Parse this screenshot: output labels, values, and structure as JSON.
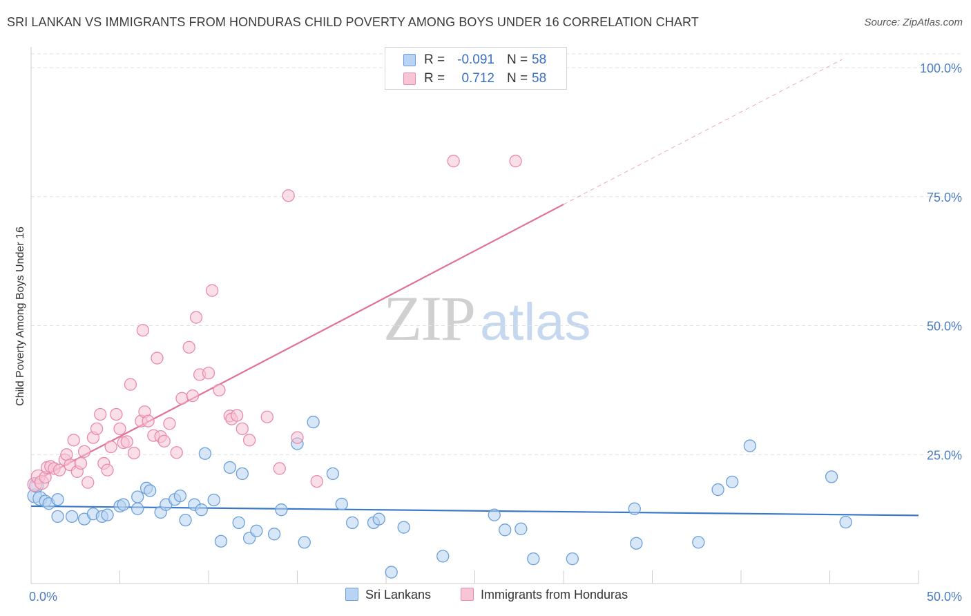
{
  "header": {
    "title": "SRI LANKAN VS IMMIGRANTS FROM HONDURAS CHILD POVERTY AMONG BOYS UNDER 16 CORRELATION CHART",
    "source": "Source: ZipAtlas.com"
  },
  "watermark": {
    "zip": "ZIP",
    "atlas": "atlas"
  },
  "legend": {
    "rows": [
      {
        "r_label": "R =",
        "r_value": "-0.091",
        "n_label": "N =",
        "n_value": "58"
      },
      {
        "r_label": "R =",
        "r_value": "0.712",
        "n_label": "N =",
        "n_value": "58"
      }
    ]
  },
  "bottom_legend": {
    "items": [
      "Sri Lankans",
      "Immigrants from Honduras"
    ]
  },
  "colors": {
    "blue_fill": "#b8d3f3",
    "blue_stroke": "#6a9fd8",
    "blue_line": "#3a78cc",
    "pink_fill": "#f7c5d6",
    "pink_stroke": "#e88aaa",
    "pink_line": "#e0709a",
    "grid": "#e2e2e2",
    "tick_text": "#4a7cc4"
  },
  "chart_data": {
    "type": "scatter",
    "title": "SRI LANKAN VS IMMIGRANTS FROM HONDURAS CHILD POVERTY AMONG BOYS UNDER 16 CORRELATION CHART",
    "xlabel": "",
    "ylabel": "Child Poverty Among Boys Under 16",
    "xlim": [
      0,
      50
    ],
    "ylim": [
      0,
      100
    ],
    "x_tick_labels": [
      "0.0%",
      "50.0%"
    ],
    "y_ticks": [
      25,
      50,
      75,
      100
    ],
    "y_tick_labels": [
      "25.0%",
      "50.0%",
      "75.0%",
      "100.0%"
    ],
    "grid": true,
    "legend_position": "top-center",
    "series": [
      {
        "name": "Sri Lankans",
        "color": "#6a9fd8",
        "trend": {
          "x": [
            0,
            50
          ],
          "y": [
            15.0,
            13.2
          ],
          "dashed_from": null
        },
        "points": [
          {
            "x": 0.2,
            "y": 17.0
          },
          {
            "x": 0.3,
            "y": 19.0
          },
          {
            "x": 0.5,
            "y": 16.5
          },
          {
            "x": 0.8,
            "y": 16.0
          },
          {
            "x": 1.0,
            "y": 15.5
          },
          {
            "x": 1.5,
            "y": 16.3
          },
          {
            "x": 1.5,
            "y": 13.0
          },
          {
            "x": 2.3,
            "y": 13.0
          },
          {
            "x": 3.0,
            "y": 12.5
          },
          {
            "x": 3.5,
            "y": 13.5
          },
          {
            "x": 4.0,
            "y": 13.0
          },
          {
            "x": 4.3,
            "y": 13.3
          },
          {
            "x": 5.0,
            "y": 15.0
          },
          {
            "x": 5.2,
            "y": 15.3
          },
          {
            "x": 6.0,
            "y": 16.8
          },
          {
            "x": 6.0,
            "y": 14.5
          },
          {
            "x": 6.5,
            "y": 18.5
          },
          {
            "x": 6.7,
            "y": 18.0
          },
          {
            "x": 7.3,
            "y": 13.8
          },
          {
            "x": 7.6,
            "y": 15.3
          },
          {
            "x": 8.1,
            "y": 16.3
          },
          {
            "x": 8.4,
            "y": 17.0
          },
          {
            "x": 8.7,
            "y": 12.3
          },
          {
            "x": 9.2,
            "y": 15.3
          },
          {
            "x": 9.6,
            "y": 14.3
          },
          {
            "x": 9.8,
            "y": 25.2
          },
          {
            "x": 10.3,
            "y": 16.2
          },
          {
            "x": 10.7,
            "y": 8.2
          },
          {
            "x": 11.2,
            "y": 22.5
          },
          {
            "x": 11.7,
            "y": 11.8
          },
          {
            "x": 11.9,
            "y": 21.3
          },
          {
            "x": 12.3,
            "y": 8.8
          },
          {
            "x": 12.7,
            "y": 10.2
          },
          {
            "x": 13.7,
            "y": 9.6
          },
          {
            "x": 14.1,
            "y": 14.3
          },
          {
            "x": 15.0,
            "y": 27.1
          },
          {
            "x": 15.4,
            "y": 8.0
          },
          {
            "x": 15.9,
            "y": 31.3
          },
          {
            "x": 17.0,
            "y": 21.3
          },
          {
            "x": 17.5,
            "y": 15.4
          },
          {
            "x": 18.1,
            "y": 11.8
          },
          {
            "x": 19.3,
            "y": 11.8
          },
          {
            "x": 19.6,
            "y": 12.5
          },
          {
            "x": 20.3,
            "y": 2.2
          },
          {
            "x": 21.0,
            "y": 10.9
          },
          {
            "x": 23.2,
            "y": 5.3
          },
          {
            "x": 26.1,
            "y": 13.3
          },
          {
            "x": 26.7,
            "y": 10.4
          },
          {
            "x": 27.6,
            "y": 10.6
          },
          {
            "x": 28.3,
            "y": 4.8
          },
          {
            "x": 30.5,
            "y": 4.8
          },
          {
            "x": 34.0,
            "y": 14.5
          },
          {
            "x": 34.1,
            "y": 7.8
          },
          {
            "x": 37.6,
            "y": 8.0
          },
          {
            "x": 38.7,
            "y": 18.2
          },
          {
            "x": 39.5,
            "y": 19.7
          },
          {
            "x": 40.5,
            "y": 26.7
          },
          {
            "x": 45.1,
            "y": 20.7
          },
          {
            "x": 45.9,
            "y": 11.9
          }
        ]
      },
      {
        "name": "Immigrants from Honduras",
        "color": "#e88aaa",
        "trend": {
          "x": [
            0,
            30
          ],
          "y": [
            19.5,
            73.5
          ],
          "dashed_to": [
            45.7,
            101.6
          ]
        },
        "points": [
          {
            "x": 0.2,
            "y": 19.2
          },
          {
            "x": 0.4,
            "y": 20.7
          },
          {
            "x": 0.6,
            "y": 19.6
          },
          {
            "x": 0.8,
            "y": 20.6
          },
          {
            "x": 0.9,
            "y": 22.5
          },
          {
            "x": 1.1,
            "y": 22.7
          },
          {
            "x": 1.3,
            "y": 22.3
          },
          {
            "x": 1.6,
            "y": 22.0
          },
          {
            "x": 1.9,
            "y": 24.0
          },
          {
            "x": 2.0,
            "y": 25.0
          },
          {
            "x": 2.2,
            "y": 23.0
          },
          {
            "x": 2.4,
            "y": 27.8
          },
          {
            "x": 2.6,
            "y": 21.7
          },
          {
            "x": 2.8,
            "y": 23.3
          },
          {
            "x": 3.0,
            "y": 25.6
          },
          {
            "x": 3.2,
            "y": 19.6
          },
          {
            "x": 3.5,
            "y": 28.3
          },
          {
            "x": 3.7,
            "y": 30.0
          },
          {
            "x": 3.9,
            "y": 32.8
          },
          {
            "x": 4.1,
            "y": 23.3
          },
          {
            "x": 4.3,
            "y": 22.0
          },
          {
            "x": 4.5,
            "y": 26.5
          },
          {
            "x": 4.8,
            "y": 32.8
          },
          {
            "x": 5.0,
            "y": 30.0
          },
          {
            "x": 5.2,
            "y": 27.3
          },
          {
            "x": 5.4,
            "y": 27.5
          },
          {
            "x": 5.6,
            "y": 38.6
          },
          {
            "x": 5.8,
            "y": 25.3
          },
          {
            "x": 6.2,
            "y": 31.5
          },
          {
            "x": 6.3,
            "y": 49.1
          },
          {
            "x": 6.4,
            "y": 33.3
          },
          {
            "x": 6.6,
            "y": 31.5
          },
          {
            "x": 6.9,
            "y": 28.7
          },
          {
            "x": 7.1,
            "y": 43.7
          },
          {
            "x": 7.3,
            "y": 28.5
          },
          {
            "x": 7.5,
            "y": 27.6
          },
          {
            "x": 7.8,
            "y": 31.0
          },
          {
            "x": 8.2,
            "y": 25.4
          },
          {
            "x": 8.5,
            "y": 35.9
          },
          {
            "x": 8.9,
            "y": 45.8
          },
          {
            "x": 9.1,
            "y": 36.4
          },
          {
            "x": 9.5,
            "y": 40.5
          },
          {
            "x": 9.3,
            "y": 51.6
          },
          {
            "x": 10.0,
            "y": 40.8
          },
          {
            "x": 10.2,
            "y": 56.8
          },
          {
            "x": 10.6,
            "y": 37.5
          },
          {
            "x": 11.2,
            "y": 32.5
          },
          {
            "x": 11.3,
            "y": 31.9
          },
          {
            "x": 11.6,
            "y": 32.6
          },
          {
            "x": 11.9,
            "y": 30.0
          },
          {
            "x": 12.3,
            "y": 27.8
          },
          {
            "x": 13.3,
            "y": 32.3
          },
          {
            "x": 14.0,
            "y": 22.3
          },
          {
            "x": 14.5,
            "y": 75.2
          },
          {
            "x": 15.0,
            "y": 28.3
          },
          {
            "x": 16.1,
            "y": 19.8
          },
          {
            "x": 23.8,
            "y": 81.9
          },
          {
            "x": 27.3,
            "y": 81.9
          }
        ]
      }
    ]
  }
}
